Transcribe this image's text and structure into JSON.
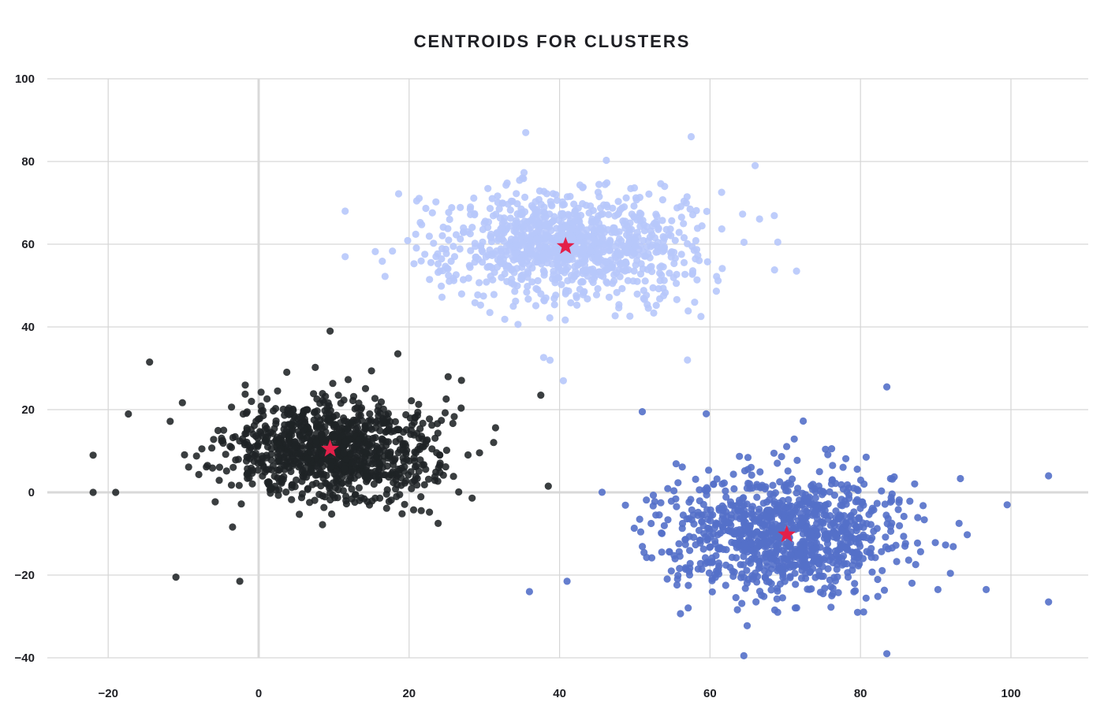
{
  "chart_data": {
    "type": "scatter",
    "title": "CENTROIDS FOR CLUSTERS",
    "xlabel": "",
    "ylabel": "",
    "xlim": [
      -28,
      110
    ],
    "ylim": [
      -42,
      100
    ],
    "x_ticks": [
      -20,
      0,
      20,
      40,
      60,
      80,
      100
    ],
    "y_ticks": [
      -40,
      -20,
      0,
      20,
      40,
      60,
      80,
      100
    ],
    "x_tick_labels": [
      "−20",
      "0",
      "20",
      "40",
      "60",
      "80",
      "100"
    ],
    "y_tick_labels": [
      "−40",
      "−20",
      "0",
      "20",
      "40",
      "60",
      "80",
      "100"
    ],
    "grid": true,
    "legend": "none",
    "series": [
      {
        "color": "#1f2326",
        "center": [
          10,
          10
        ],
        "spread": [
          9.5,
          8.5
        ],
        "count": 1000,
        "sample_points": [
          [
            -22,
            9
          ],
          [
            -22,
            0
          ],
          [
            -19,
            0
          ],
          [
            -14.5,
            31.5
          ],
          [
            -11,
            -20.5
          ],
          [
            -2.5,
            -21.5
          ],
          [
            9.5,
            39
          ],
          [
            18.5,
            33.5
          ],
          [
            37.5,
            23.5
          ],
          [
            38.5,
            1.5
          ]
        ]
      },
      {
        "color": "#b7c8fb",
        "center": [
          41,
          60
        ],
        "spread": [
          11.5,
          9.5
        ],
        "count": 1000,
        "sample_points": [
          [
            11.5,
            68
          ],
          [
            11.5,
            57
          ],
          [
            35.5,
            87
          ],
          [
            40.5,
            27
          ],
          [
            57.5,
            86
          ],
          [
            66,
            79
          ],
          [
            69,
            60.5
          ],
          [
            71.5,
            53.5
          ],
          [
            57,
            32
          ]
        ]
      },
      {
        "color": "#5470c9",
        "center": [
          70,
          -10
        ],
        "spread": [
          11,
          10
        ],
        "count": 1000,
        "sample_points": [
          [
            36,
            -24
          ],
          [
            41,
            -21.5
          ],
          [
            51,
            19.5
          ],
          [
            59.5,
            19
          ],
          [
            64.5,
            -39.5
          ],
          [
            83.5,
            25.5
          ],
          [
            83.5,
            -39
          ],
          [
            99.5,
            -3
          ],
          [
            105,
            4
          ],
          [
            105,
            -26.5
          ]
        ]
      }
    ],
    "centroids": {
      "color": "#e3204a",
      "marker": "star",
      "points": [
        [
          9.5,
          10.5
        ],
        [
          40.8,
          59.5
        ],
        [
          70.2,
          -10.2
        ]
      ]
    }
  }
}
